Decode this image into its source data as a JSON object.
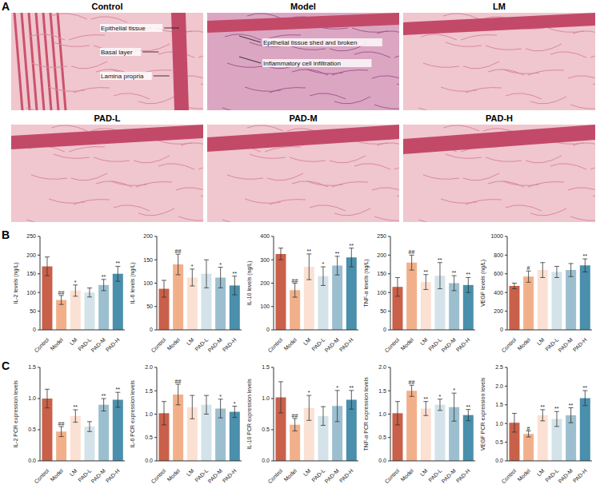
{
  "panel_a": {
    "label": "A",
    "images": [
      {
        "title": "Control",
        "annotations": [
          "Epithelial tissue",
          "Basal layer",
          "Lamina propria"
        ]
      },
      {
        "title": "Model",
        "annotations": [
          "Epithelial tissue shed and broken",
          "Inflammatory cell infiltration"
        ]
      },
      {
        "title": "LM"
      },
      {
        "title": "PAD-L"
      },
      {
        "title": "PAD-M"
      },
      {
        "title": "PAD-H"
      }
    ]
  },
  "chart_data": [
    {
      "type": "bar",
      "panel": "B",
      "y_label": "IL-2 levels (ng/L)",
      "categories": [
        "Control",
        "Model",
        "LM",
        "PAD-L",
        "PAD-M",
        "PAD-H"
      ],
      "colors": [
        "#c9604a",
        "#f2b08a",
        "#fbe1d3",
        "#d4e3ea",
        "#9cbfcf",
        "#4a8fab"
      ],
      "values": [
        170,
        80,
        105,
        100,
        120,
        150
      ],
      "errors": [
        25,
        12,
        15,
        12,
        15,
        20
      ],
      "significance": [
        null,
        "##",
        "*",
        null,
        "**",
        "**"
      ],
      "ylim": [
        0,
        250
      ],
      "yticks": [
        0,
        50,
        100,
        150,
        200,
        250
      ]
    },
    {
      "type": "bar",
      "panel": "B",
      "y_label": "IL-6 levels (ng/L)",
      "categories": [
        "Control",
        "Model",
        "LM",
        "PAD-L",
        "PAD-M",
        "PAD-H"
      ],
      "colors": [
        "#c9604a",
        "#f2b08a",
        "#fbe1d3",
        "#d4e3ea",
        "#9cbfcf",
        "#4a8fab"
      ],
      "values": [
        88,
        140,
        112,
        120,
        112,
        95
      ],
      "errors": [
        18,
        22,
        18,
        30,
        22,
        20
      ],
      "significance": [
        null,
        "##",
        "*",
        null,
        "*",
        "**"
      ],
      "ylim": [
        0,
        200
      ],
      "yticks": [
        0,
        50,
        100,
        150,
        200
      ]
    },
    {
      "type": "bar",
      "panel": "B",
      "y_label": "IL-10 levels (ng/L)",
      "categories": [
        "Control",
        "Model",
        "LM",
        "PAD-L",
        "PAD-M",
        "PAD-H"
      ],
      "colors": [
        "#c9604a",
        "#f2b08a",
        "#fbe1d3",
        "#d4e3ea",
        "#9cbfcf",
        "#4a8fab"
      ],
      "values": [
        325,
        170,
        270,
        230,
        275,
        310
      ],
      "errors": [
        25,
        30,
        55,
        40,
        40,
        40
      ],
      "significance": [
        null,
        "##",
        "**",
        "*",
        "**",
        "**"
      ],
      "ylim": [
        0,
        400
      ],
      "yticks": [
        0,
        100,
        200,
        300,
        400
      ]
    },
    {
      "type": "bar",
      "panel": "B",
      "y_label": "TNF-α levels (ng/L)",
      "categories": [
        "Control",
        "Model",
        "LM",
        "PAD-L",
        "PAD-M",
        "PAD-H"
      ],
      "colors": [
        "#c9604a",
        "#f2b08a",
        "#fbe1d3",
        "#d4e3ea",
        "#9cbfcf",
        "#4a8fab"
      ],
      "values": [
        115,
        180,
        128,
        145,
        125,
        120
      ],
      "errors": [
        25,
        20,
        20,
        35,
        20,
        20
      ],
      "significance": [
        null,
        "##",
        "**",
        "**",
        "**",
        "**"
      ],
      "ylim": [
        0,
        250
      ],
      "yticks": [
        0,
        50,
        100,
        150,
        200,
        250
      ]
    },
    {
      "type": "bar",
      "panel": "B",
      "y_label": "VEGF levels (ng/L)",
      "categories": [
        "Control",
        "Model",
        "LM",
        "PAD-L",
        "PAD-M",
        "PAD-H"
      ],
      "colors": [
        "#c9604a",
        "#f2b08a",
        "#fbe1d3",
        "#d4e3ea",
        "#9cbfcf",
        "#4a8fab"
      ],
      "values": [
        470,
        570,
        640,
        620,
        640,
        690
      ],
      "errors": [
        30,
        60,
        80,
        60,
        70,
        70
      ],
      "significance": [
        null,
        "#",
        null,
        null,
        null,
        "**"
      ],
      "ylim": [
        0,
        1000
      ],
      "yticks": [
        0,
        200,
        400,
        600,
        800,
        1000
      ]
    },
    {
      "type": "bar",
      "panel": "C",
      "y_label": "IL-2 PCR expression levels",
      "categories": [
        "Control",
        "Model",
        "LM",
        "PAD-L",
        "PAD-M",
        "PAD-H"
      ],
      "colors": [
        "#c9604a",
        "#f2b08a",
        "#fbe1d3",
        "#d4e3ea",
        "#9cbfcf",
        "#4a8fab"
      ],
      "values": [
        1.0,
        0.47,
        0.72,
        0.55,
        0.9,
        0.98
      ],
      "errors": [
        0.15,
        0.08,
        0.1,
        0.08,
        0.1,
        0.12
      ],
      "significance": [
        null,
        "##",
        "**",
        null,
        "**",
        "**"
      ],
      "ylim": [
        0,
        1.5
      ],
      "yticks": [
        {
          "value": 0,
          "label": "0.0"
        },
        0.5,
        {
          "value": 1,
          "label": "1.0"
        },
        1.5
      ]
    },
    {
      "type": "bar",
      "panel": "C",
      "y_label": "IL-6 PCR expression levels",
      "categories": [
        "Control",
        "Model",
        "LM",
        "PAD-L",
        "PAD-M",
        "PAD-H"
      ],
      "colors": [
        "#c9604a",
        "#f2b08a",
        "#fbe1d3",
        "#d4e3ea",
        "#9cbfcf",
        "#4a8fab"
      ],
      "values": [
        1.02,
        1.42,
        1.15,
        1.2,
        1.12,
        1.05
      ],
      "errors": [
        0.25,
        0.22,
        0.25,
        0.2,
        0.2,
        0.12
      ],
      "significance": [
        null,
        "##",
        null,
        null,
        "*",
        "*"
      ],
      "ylim": [
        0,
        2
      ],
      "yticks": [
        {
          "value": 0,
          "label": "0.0"
        },
        0.5,
        {
          "value": 1,
          "label": "1.0"
        },
        1.5,
        {
          "value": 2,
          "label": "2.0"
        }
      ]
    },
    {
      "type": "bar",
      "panel": "C",
      "y_label": "IL-10 PCR expression levels",
      "categories": [
        "Control",
        "Model",
        "LM",
        "PAD-L",
        "PAD-M",
        "PAD-H"
      ],
      "colors": [
        "#c9604a",
        "#f2b08a",
        "#fbe1d3",
        "#d4e3ea",
        "#9cbfcf",
        "#4a8fab"
      ],
      "values": [
        1.02,
        0.58,
        0.85,
        0.72,
        0.88,
        0.98
      ],
      "errors": [
        0.25,
        0.1,
        0.2,
        0.15,
        0.25,
        0.15
      ],
      "significance": [
        null,
        "##",
        "*",
        null,
        "*",
        "**"
      ],
      "ylim": [
        0,
        1.5
      ],
      "yticks": [
        {
          "value": 0,
          "label": "0.0"
        },
        0.5,
        {
          "value": 1,
          "label": "1.0"
        },
        1.5
      ]
    },
    {
      "type": "bar",
      "panel": "C",
      "y_label": "TNF-α PCR expression levels",
      "categories": [
        "Control",
        "Model",
        "LM",
        "PAD-L",
        "PAD-M",
        "PAD-H"
      ],
      "colors": [
        "#c9604a",
        "#f2b08a",
        "#fbe1d3",
        "#d4e3ea",
        "#9cbfcf",
        "#4a8fab"
      ],
      "values": [
        1.02,
        1.5,
        1.12,
        1.2,
        1.15,
        0.98
      ],
      "errors": [
        0.25,
        0.12,
        0.15,
        0.12,
        0.3,
        0.12
      ],
      "significance": [
        null,
        "##",
        "**",
        "*",
        "*",
        "**"
      ],
      "ylim": [
        0,
        2
      ],
      "yticks": [
        {
          "value": 0,
          "label": "0.0"
        },
        0.5,
        {
          "value": 1,
          "label": "1.0"
        },
        1.5,
        {
          "value": 2,
          "label": "2.0"
        }
      ]
    },
    {
      "type": "bar",
      "panel": "C",
      "y_label": "VEGF PCR expression levels",
      "categories": [
        "Control",
        "Model",
        "LM",
        "PAD-L",
        "PAD-M",
        "PAD-H"
      ],
      "colors": [
        "#c9604a",
        "#f2b08a",
        "#fbe1d3",
        "#d4e3ea",
        "#9cbfcf",
        "#4a8fab"
      ],
      "values": [
        1.02,
        0.72,
        1.22,
        1.12,
        1.22,
        1.68
      ],
      "errors": [
        0.25,
        0.08,
        0.15,
        0.2,
        0.2,
        0.2
      ],
      "significance": [
        null,
        "#",
        "**",
        "**",
        "**",
        "**"
      ],
      "ylim": [
        0,
        2.5
      ],
      "yticks": [
        {
          "value": 0,
          "label": "0.0"
        },
        0.5,
        {
          "value": 1,
          "label": "1.0"
        },
        1.5,
        {
          "value": 2,
          "label": "2.0"
        },
        2.5
      ]
    }
  ]
}
